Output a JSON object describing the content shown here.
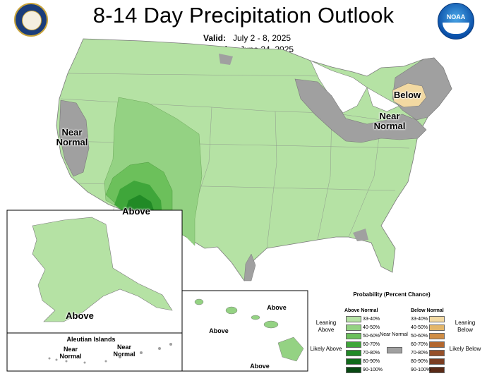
{
  "header": {
    "title": "8-14 Day Precipitation Outlook",
    "valid_label": "Valid:",
    "valid_value": "July 2 - 8, 2025",
    "issued_label": "Issued:",
    "issued_value": "June 24, 2025"
  },
  "logos": {
    "left": "department-of-commerce-seal",
    "right_text": "NOAA"
  },
  "map_labels": {
    "near_normal_west": "Near Normal",
    "near_normal_east": "Near Normal",
    "below": "Below",
    "above_southwest": "Above",
    "above_alaska": "Above",
    "aleutian_title": "Aleutian Islands",
    "aleutian_near_normal_1": "Near Normal",
    "aleutian_near_normal_2": "Near Normal",
    "hawaii_above_1": "Above",
    "hawaii_above_2": "Above",
    "hawaii_above_3": "Above"
  },
  "legend": {
    "title": "Probability (Percent Chance)",
    "above_header": "Above Normal",
    "below_header": "Below Normal",
    "near_normal_label": "Near Normal",
    "leaning_above": "Leaning Above",
    "likely_above": "Likely Above",
    "leaning_below": "Leaning Below",
    "likely_below": "Likely Below",
    "above_bins": [
      {
        "label": "33-40%",
        "color": "#b5e2a4"
      },
      {
        "label": "40-50%",
        "color": "#94d283"
      },
      {
        "label": "50-60%",
        "color": "#6cc05b"
      },
      {
        "label": "60-70%",
        "color": "#3fa63a"
      },
      {
        "label": "70-80%",
        "color": "#218a26"
      },
      {
        "label": "80-90%",
        "color": "#106a1a"
      },
      {
        "label": "90-100%",
        "color": "#084812"
      }
    ],
    "below_bins": [
      {
        "label": "33-40%",
        "color": "#f2d9a2"
      },
      {
        "label": "40-50%",
        "color": "#e3b66a"
      },
      {
        "label": "50-60%",
        "color": "#cf8d45"
      },
      {
        "label": "60-70%",
        "color": "#b3672e"
      },
      {
        "label": "70-80%",
        "color": "#96502a"
      },
      {
        "label": "80-90%",
        "color": "#7a3d22"
      },
      {
        "label": "90-100%",
        "color": "#5a2a17"
      }
    ],
    "near_normal_color": "#a0a0a0"
  },
  "colors": {
    "lean_above": "#b5e2a4",
    "above_40_50": "#94d283",
    "above_50_60": "#6cc05b",
    "above_60_70": "#3fa63a",
    "above_70_80": "#218a26",
    "near_normal": "#a0a0a0",
    "lean_below": "#f2d9a2"
  }
}
